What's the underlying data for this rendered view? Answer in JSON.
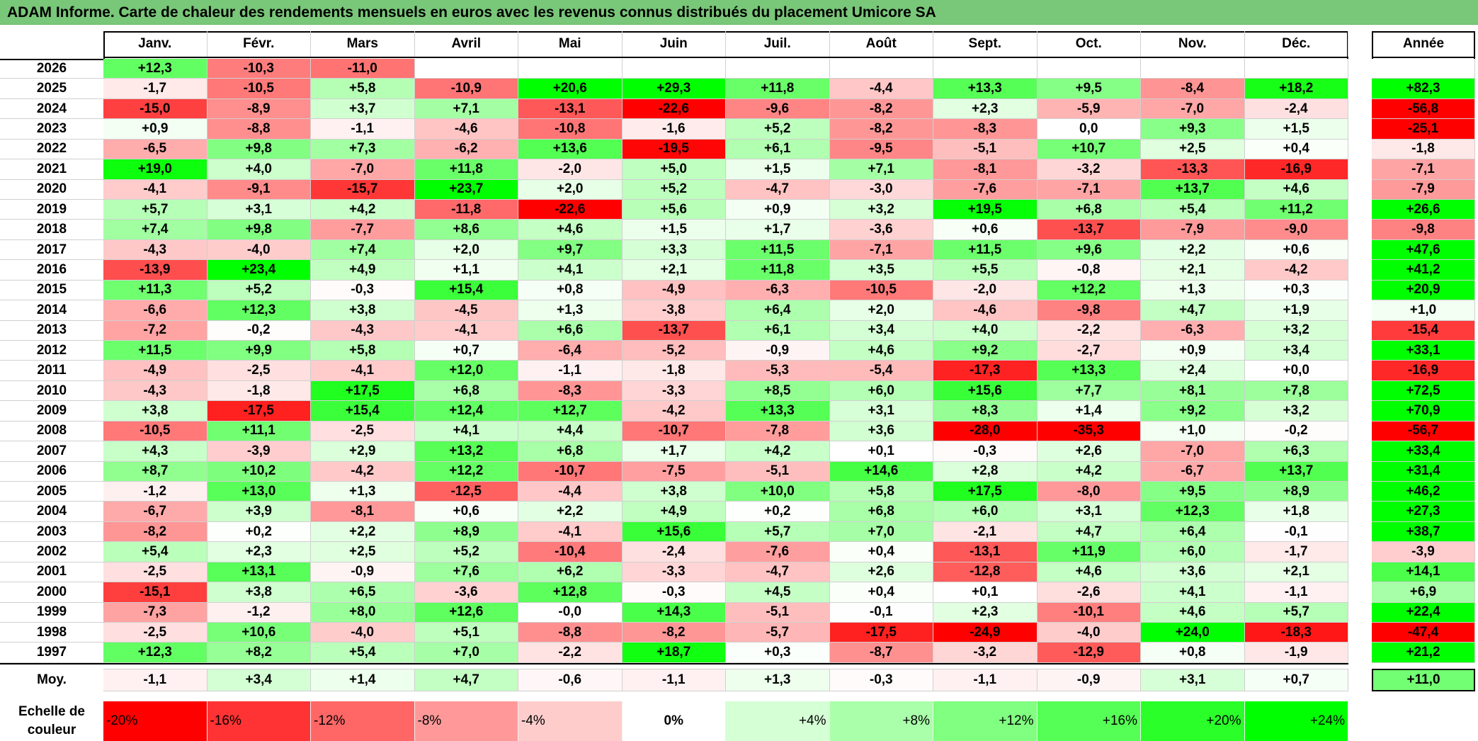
{
  "title": "ADAM Informe. Carte de chaleur des rendements mensuels en euros avec les revenus connus distribués du placement Umicore SA",
  "months": [
    "Janv.",
    "Févr.",
    "Mars",
    "Avril",
    "Mai",
    "Juin",
    "Juil.",
    "Août",
    "Sept.",
    "Oct.",
    "Nov.",
    "Déc."
  ],
  "year_header": "Année",
  "avg_label": "Moy.",
  "legend_title_line1": "Echelle de",
  "legend_title_line2": "couleur",
  "legend": [
    "-20%",
    "-16%",
    "-12%",
    "-8%",
    "-4%",
    "0%",
    "+4%",
    "+8%",
    "+12%",
    "+16%",
    "+20%",
    "+24%"
  ],
  "colors": {
    "title_bg": "#79c779",
    "strong_red": "#ff0000",
    "strong_green": "#00ff00",
    "neutral": "#ffffff"
  },
  "chart_data": {
    "type": "heatmap",
    "title": "ADAM Informe. Carte de chaleur des rendements mensuels en euros avec les revenus connus distribués du placement Umicore SA",
    "x_categories": [
      "Janv.",
      "Févr.",
      "Mars",
      "Avril",
      "Mai",
      "Juin",
      "Juil.",
      "Août",
      "Sept.",
      "Oct.",
      "Nov.",
      "Déc."
    ],
    "rows": [
      {
        "year": "2026",
        "values": [
          "+12,3",
          "-10,3",
          "-11,0",
          "",
          "",
          "",
          "",
          "",
          "",
          "",
          "",
          ""
        ],
        "annual": ""
      },
      {
        "year": "2025",
        "values": [
          "-1,7",
          "-10,5",
          "+5,8",
          "-10,9",
          "+20,6",
          "+29,3",
          "+11,8",
          "-4,4",
          "+13,3",
          "+9,5",
          "-8,4",
          "+18,2"
        ],
        "annual": "+82,3"
      },
      {
        "year": "2024",
        "values": [
          "-15,0",
          "-8,9",
          "+3,7",
          "+7,1",
          "-13,1",
          "-22,6",
          "-9,6",
          "-8,2",
          "+2,3",
          "-5,9",
          "-7,0",
          "-2,4"
        ],
        "annual": "-56,8"
      },
      {
        "year": "2023",
        "values": [
          "+0,9",
          "-8,8",
          "-1,1",
          "-4,6",
          "-10,8",
          "-1,6",
          "+5,2",
          "-8,2",
          "-8,3",
          "0,0",
          "+9,3",
          "+1,5"
        ],
        "annual": "-25,1"
      },
      {
        "year": "2022",
        "values": [
          "-6,5",
          "+9,8",
          "+7,3",
          "-6,2",
          "+13,6",
          "-19,5",
          "+6,1",
          "-9,5",
          "-5,1",
          "+10,7",
          "+2,5",
          "+0,4"
        ],
        "annual": "-1,8"
      },
      {
        "year": "2021",
        "values": [
          "+19,0",
          "+4,0",
          "-7,0",
          "+11,8",
          "-2,0",
          "+5,0",
          "+1,5",
          "+7,1",
          "-8,1",
          "-3,2",
          "-13,3",
          "-16,9"
        ],
        "annual": "-7,1"
      },
      {
        "year": "2020",
        "values": [
          "-4,1",
          "-9,1",
          "-15,7",
          "+23,7",
          "+2,0",
          "+5,2",
          "-4,7",
          "-3,0",
          "-7,6",
          "-7,1",
          "+13,7",
          "+4,6"
        ],
        "annual": "-7,9"
      },
      {
        "year": "2019",
        "values": [
          "+5,7",
          "+3,1",
          "+4,2",
          "-11,8",
          "-22,6",
          "+5,6",
          "+0,9",
          "+3,2",
          "+19,5",
          "+6,8",
          "+5,4",
          "+11,2"
        ],
        "annual": "+26,6"
      },
      {
        "year": "2018",
        "values": [
          "+7,4",
          "+9,8",
          "-7,7",
          "+8,6",
          "+4,6",
          "+1,5",
          "+1,7",
          "-3,6",
          "+0,6",
          "-13,7",
          "-7,9",
          "-9,0"
        ],
        "annual": "-9,8"
      },
      {
        "year": "2017",
        "values": [
          "-4,3",
          "-4,0",
          "+7,4",
          "+2,0",
          "+9,7",
          "+3,3",
          "+11,5",
          "-7,1",
          "+11,5",
          "+9,6",
          "+2,2",
          "+0,6"
        ],
        "annual": "+47,6"
      },
      {
        "year": "2016",
        "values": [
          "-13,9",
          "+23,4",
          "+4,9",
          "+1,1",
          "+4,1",
          "+2,1",
          "+11,8",
          "+3,5",
          "+5,5",
          "-0,8",
          "+2,1",
          "-4,2"
        ],
        "annual": "+41,2"
      },
      {
        "year": "2015",
        "values": [
          "+11,3",
          "+5,2",
          "-0,3",
          "+15,4",
          "+0,8",
          "-4,9",
          "-6,3",
          "-10,5",
          "-2,0",
          "+12,2",
          "+1,3",
          "+0,3"
        ],
        "annual": "+20,9"
      },
      {
        "year": "2014",
        "values": [
          "-6,6",
          "+12,3",
          "+3,8",
          "-4,5",
          "+1,3",
          "-3,8",
          "+6,4",
          "+2,0",
          "-4,6",
          "-9,8",
          "+4,7",
          "+1,9"
        ],
        "annual": "+1,0"
      },
      {
        "year": "2013",
        "values": [
          "-7,2",
          "-0,2",
          "-4,3",
          "-4,1",
          "+6,6",
          "-13,7",
          "+6,1",
          "+3,4",
          "+4,0",
          "-2,2",
          "-6,3",
          "+3,2"
        ],
        "annual": "-15,4"
      },
      {
        "year": "2012",
        "values": [
          "+11,5",
          "+9,9",
          "+5,8",
          "+0,7",
          "-6,4",
          "-5,2",
          "-0,9",
          "+4,6",
          "+9,2",
          "-2,7",
          "+0,9",
          "+3,4"
        ],
        "annual": "+33,1"
      },
      {
        "year": "2011",
        "values": [
          "-4,9",
          "-2,5",
          "-4,1",
          "+12,0",
          "-1,1",
          "-1,8",
          "-5,3",
          "-5,4",
          "-17,3",
          "+13,3",
          "+2,4",
          "+0,0"
        ],
        "annual": "-16,9"
      },
      {
        "year": "2010",
        "values": [
          "-4,3",
          "-1,8",
          "+17,5",
          "+6,8",
          "-8,3",
          "-3,3",
          "+8,5",
          "+6,0",
          "+15,6",
          "+7,7",
          "+8,1",
          "+7,8"
        ],
        "annual": "+72,5"
      },
      {
        "year": "2009",
        "values": [
          "+3,8",
          "-17,5",
          "+15,4",
          "+12,4",
          "+12,7",
          "-4,2",
          "+13,3",
          "+3,1",
          "+8,3",
          "+1,4",
          "+9,2",
          "+3,2"
        ],
        "annual": "+70,9"
      },
      {
        "year": "2008",
        "values": [
          "-10,5",
          "+11,1",
          "-2,5",
          "+4,1",
          "+4,4",
          "-10,7",
          "-7,8",
          "+3,6",
          "-28,0",
          "-35,3",
          "+1,0",
          "-0,2"
        ],
        "annual": "-56,7"
      },
      {
        "year": "2007",
        "values": [
          "+4,3",
          "-3,9",
          "+2,9",
          "+13,2",
          "+6,8",
          "+1,7",
          "+4,2",
          "+0,1",
          "-0,3",
          "+2,6",
          "-7,0",
          "+6,3"
        ],
        "annual": "+33,4"
      },
      {
        "year": "2006",
        "values": [
          "+8,7",
          "+10,2",
          "-4,2",
          "+12,2",
          "-10,7",
          "-7,5",
          "-5,1",
          "+14,6",
          "+2,8",
          "+4,2",
          "-6,7",
          "+13,7"
        ],
        "annual": "+31,4"
      },
      {
        "year": "2005",
        "values": [
          "-1,2",
          "+13,0",
          "+1,3",
          "-12,5",
          "-4,4",
          "+3,8",
          "+10,0",
          "+5,8",
          "+17,5",
          "-8,0",
          "+9,5",
          "+8,9"
        ],
        "annual": "+46,2"
      },
      {
        "year": "2004",
        "values": [
          "-6,7",
          "+3,9",
          "-8,1",
          "+0,6",
          "+2,2",
          "+4,9",
          "+0,2",
          "+6,8",
          "+6,0",
          "+3,1",
          "+12,3",
          "+1,8"
        ],
        "annual": "+27,3"
      },
      {
        "year": "2003",
        "values": [
          "-8,2",
          "+0,2",
          "+2,2",
          "+8,9",
          "-4,1",
          "+15,6",
          "+5,7",
          "+7,0",
          "-2,1",
          "+4,7",
          "+6,4",
          "-0,1"
        ],
        "annual": "+38,7"
      },
      {
        "year": "2002",
        "values": [
          "+5,4",
          "+2,3",
          "+2,5",
          "+5,2",
          "-10,4",
          "-2,4",
          "-7,6",
          "+0,4",
          "-13,1",
          "+11,9",
          "+6,0",
          "-1,7"
        ],
        "annual": "-3,9"
      },
      {
        "year": "2001",
        "values": [
          "-2,5",
          "+13,1",
          "-0,9",
          "+7,6",
          "+6,2",
          "-3,3",
          "-4,7",
          "+2,6",
          "-12,8",
          "+4,6",
          "+3,6",
          "+2,1"
        ],
        "annual": "+14,1"
      },
      {
        "year": "2000",
        "values": [
          "-15,1",
          "+3,8",
          "+6,5",
          "-3,6",
          "+12,8",
          "-0,3",
          "+4,5",
          "+0,4",
          "+0,1",
          "-2,6",
          "+4,1",
          "-1,1"
        ],
        "annual": "+6,9"
      },
      {
        "year": "1999",
        "values": [
          "-7,3",
          "-1,2",
          "+8,0",
          "+12,6",
          "-0,0",
          "+14,3",
          "-5,1",
          "-0,1",
          "+2,3",
          "-10,1",
          "+4,6",
          "+5,7"
        ],
        "annual": "+22,4"
      },
      {
        "year": "1998",
        "values": [
          "-2,5",
          "+10,6",
          "-4,0",
          "+5,1",
          "-8,8",
          "-8,2",
          "-5,7",
          "-17,5",
          "-24,9",
          "-4,0",
          "+24,0",
          "-18,3"
        ],
        "annual": "-47,4"
      },
      {
        "year": "1997",
        "values": [
          "+12,3",
          "+8,2",
          "+5,4",
          "+7,0",
          "-2,2",
          "+18,7",
          "+0,3",
          "-8,7",
          "-3,2",
          "-12,9",
          "+0,8",
          "-1,9"
        ],
        "annual": "+21,2"
      }
    ],
    "average": {
      "values": [
        "-1,1",
        "+3,4",
        "+1,4",
        "+4,7",
        "-0,6",
        "-1,1",
        "+1,3",
        "-0,3",
        "-1,1",
        "-0,9",
        "+3,1",
        "+0,7"
      ],
      "annual": "+11,0"
    },
    "color_scale": {
      "min_percent": -20,
      "max_percent": 24,
      "min_color": "#ff0000",
      "mid_color": "#ffffff",
      "max_color": "#00ff00"
    }
  }
}
